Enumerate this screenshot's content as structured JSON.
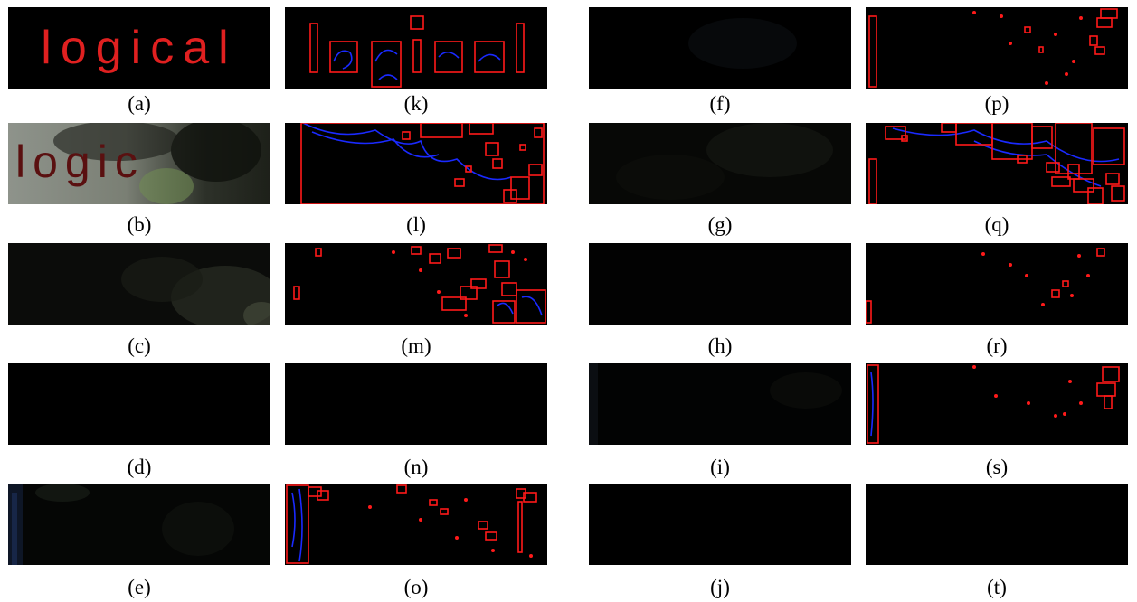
{
  "figure": {
    "panels": [
      {
        "id": "a",
        "caption": "(a)",
        "text": "logical",
        "kind": "text-map"
      },
      {
        "id": "b",
        "caption": "(b)",
        "text": "logic",
        "kind": "photo"
      },
      {
        "id": "c",
        "caption": "(c)",
        "kind": "dark-photo"
      },
      {
        "id": "d",
        "caption": "(d)",
        "kind": "black"
      },
      {
        "id": "e",
        "caption": "(e)",
        "kind": "dark-photo"
      },
      {
        "id": "f",
        "caption": "(f)",
        "kind": "black"
      },
      {
        "id": "g",
        "caption": "(g)",
        "kind": "dark-photo"
      },
      {
        "id": "h",
        "caption": "(h)",
        "kind": "black"
      },
      {
        "id": "i",
        "caption": "(i)",
        "kind": "dark-photo"
      },
      {
        "id": "j",
        "caption": "(j)",
        "kind": "black"
      },
      {
        "id": "k",
        "caption": "(k)",
        "kind": "boxes"
      },
      {
        "id": "l",
        "caption": "(l)",
        "kind": "boxes"
      },
      {
        "id": "m",
        "caption": "(m)",
        "kind": "boxes"
      },
      {
        "id": "n",
        "caption": "(n)",
        "kind": "black"
      },
      {
        "id": "o",
        "caption": "(o)",
        "kind": "boxes"
      },
      {
        "id": "p",
        "caption": "(p)",
        "kind": "boxes"
      },
      {
        "id": "q",
        "caption": "(q)",
        "kind": "boxes"
      },
      {
        "id": "r",
        "caption": "(r)",
        "kind": "boxes"
      },
      {
        "id": "s",
        "caption": "(s)",
        "kind": "boxes"
      },
      {
        "id": "t",
        "caption": "(t)",
        "kind": "black"
      }
    ]
  },
  "colors": {
    "box": "#ff1a1a",
    "contour": "#1a2aff",
    "text": "#e02020",
    "background": "#000000"
  }
}
